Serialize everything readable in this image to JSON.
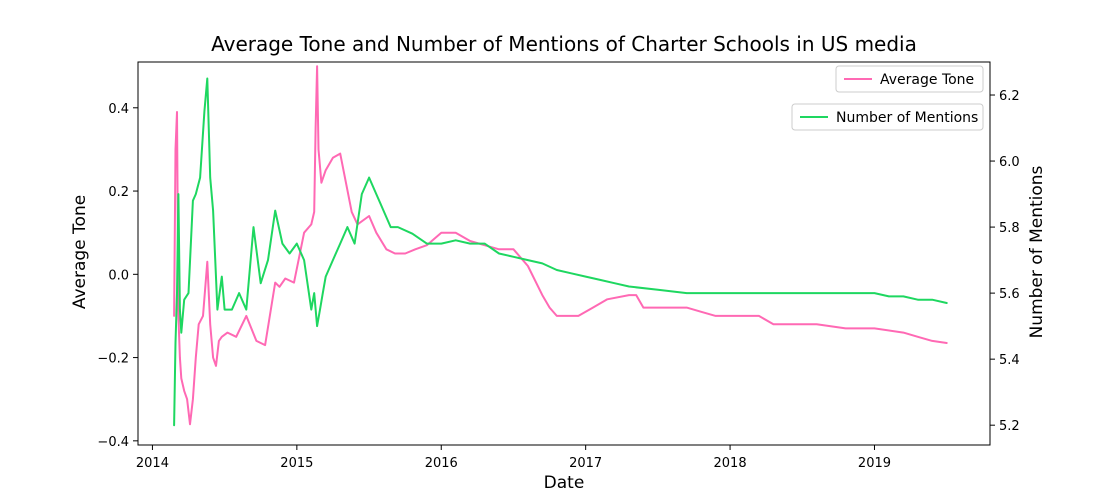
{
  "chart_data": {
    "type": "line",
    "title": "Average Tone and Number of Mentions of Charter Schools in US media",
    "xlabel": "Date",
    "ylabel_left": "Average Tone",
    "ylabel_right": "Number of Mentions",
    "x_ticks": [
      {
        "year": 2014,
        "label": "2014"
      },
      {
        "year": 2015,
        "label": "2015"
      },
      {
        "year": 2016,
        "label": "2016"
      },
      {
        "year": 2017,
        "label": "2017"
      },
      {
        "year": 2018,
        "label": "2018"
      },
      {
        "year": 2019,
        "label": "2019"
      }
    ],
    "y_left_ticks": [
      {
        "value": 0.4,
        "label": "0.4"
      },
      {
        "value": 0.2,
        "label": "0.2"
      },
      {
        "value": 0.0,
        "label": "0.0"
      },
      {
        "value": -0.2,
        "label": "−0.2"
      },
      {
        "value": -0.4,
        "label": "−0.4"
      }
    ],
    "y_right_ticks": [
      {
        "value": 6.2,
        "label": "6.2"
      },
      {
        "value": 6.0,
        "label": "6.0"
      },
      {
        "value": 5.8,
        "label": "5.8"
      },
      {
        "value": 5.6,
        "label": "5.6"
      },
      {
        "value": 5.4,
        "label": "5.4"
      },
      {
        "value": 5.2,
        "label": "5.2"
      }
    ],
    "xlim": [
      2013.9,
      2019.8
    ],
    "ylim_left": [
      -0.41,
      0.51
    ],
    "ylim_right": [
      5.14,
      6.3
    ],
    "grid": false,
    "series": [
      {
        "name": "Average Tone",
        "axis": "left",
        "color": "#ff69b4",
        "legend_position": "top-right",
        "x": [
          2014.15,
          2014.16,
          2014.17,
          2014.18,
          2014.19,
          2014.2,
          2014.22,
          2014.24,
          2014.26,
          2014.28,
          2014.3,
          2014.32,
          2014.35,
          2014.38,
          2014.4,
          2014.42,
          2014.44,
          2014.46,
          2014.48,
          2014.52,
          2014.58,
          2014.65,
          2014.72,
          2014.78,
          2014.85,
          2014.88,
          2014.92,
          2014.98,
          2015.05,
          2015.1,
          2015.12,
          2015.13,
          2015.14,
          2015.15,
          2015.17,
          2015.2,
          2015.25,
          2015.3,
          2015.38,
          2015.42,
          2015.5,
          2015.55,
          2015.62,
          2015.68,
          2015.75,
          2015.82,
          2015.9,
          2016.0,
          2016.1,
          2016.2,
          2016.3,
          2016.4,
          2016.5,
          2016.6,
          2016.7,
          2016.75,
          2016.8,
          2016.85,
          2016.95,
          2017.05,
          2017.15,
          2017.3,
          2017.35,
          2017.4,
          2017.5,
          2017.6,
          2017.7,
          2017.8,
          2017.9,
          2018.0,
          2018.2,
          2018.3,
          2018.4,
          2018.6,
          2018.8,
          2019.0,
          2019.2,
          2019.3,
          2019.4,
          2019.5
        ],
        "y": [
          -0.1,
          0.3,
          0.39,
          -0.1,
          -0.2,
          -0.25,
          -0.28,
          -0.3,
          -0.36,
          -0.3,
          -0.2,
          -0.12,
          -0.1,
          0.03,
          -0.12,
          -0.2,
          -0.22,
          -0.16,
          -0.15,
          -0.14,
          -0.15,
          -0.1,
          -0.16,
          -0.17,
          -0.02,
          -0.03,
          -0.01,
          -0.02,
          0.1,
          0.12,
          0.15,
          0.35,
          0.5,
          0.3,
          0.22,
          0.25,
          0.28,
          0.29,
          0.15,
          0.12,
          0.14,
          0.1,
          0.06,
          0.05,
          0.05,
          0.06,
          0.07,
          0.1,
          0.1,
          0.08,
          0.07,
          0.06,
          0.06,
          0.02,
          -0.05,
          -0.08,
          -0.1,
          -0.1,
          -0.1,
          -0.08,
          -0.06,
          -0.05,
          -0.05,
          -0.08,
          -0.08,
          -0.08,
          -0.08,
          -0.09,
          -0.1,
          -0.1,
          -0.1,
          -0.12,
          -0.12,
          -0.12,
          -0.13,
          -0.13,
          -0.14,
          -0.15,
          -0.16,
          -0.165
        ]
      },
      {
        "name": "Number of Mentions",
        "axis": "right",
        "color": "#1ed760",
        "legend_position": "upper right",
        "x": [
          2014.15,
          2014.16,
          2014.17,
          2014.18,
          2014.19,
          2014.2,
          2014.22,
          2014.25,
          2014.28,
          2014.3,
          2014.33,
          2014.36,
          2014.38,
          2014.4,
          2014.42,
          2014.45,
          2014.48,
          2014.5,
          2014.55,
          2014.6,
          2014.65,
          2014.7,
          2014.75,
          2014.8,
          2014.85,
          2014.9,
          2014.95,
          2015.0,
          2015.05,
          2015.1,
          2015.12,
          2015.14,
          2015.16,
          2015.18,
          2015.2,
          2015.25,
          2015.3,
          2015.35,
          2015.4,
          2015.45,
          2015.5,
          2015.55,
          2015.6,
          2015.65,
          2015.7,
          2015.8,
          2015.9,
          2016.0,
          2016.1,
          2016.2,
          2016.3,
          2016.4,
          2016.5,
          2016.6,
          2016.7,
          2016.8,
          2016.9,
          2017.0,
          2017.1,
          2017.2,
          2017.3,
          2017.5,
          2017.7,
          2017.9,
          2018.0,
          2018.2,
          2018.4,
          2018.6,
          2018.8,
          2019.0,
          2019.1,
          2019.2,
          2019.3,
          2019.4,
          2019.5
        ],
        "y": [
          5.2,
          5.45,
          5.6,
          5.9,
          5.55,
          5.48,
          5.58,
          5.6,
          5.88,
          5.9,
          5.95,
          6.15,
          6.25,
          5.95,
          5.85,
          5.55,
          5.65,
          5.55,
          5.55,
          5.6,
          5.55,
          5.8,
          5.63,
          5.7,
          5.85,
          5.75,
          5.72,
          5.75,
          5.7,
          5.55,
          5.6,
          5.5,
          5.55,
          5.6,
          5.65,
          5.7,
          5.75,
          5.8,
          5.75,
          5.9,
          5.95,
          5.9,
          5.85,
          5.8,
          5.8,
          5.78,
          5.75,
          5.75,
          5.76,
          5.75,
          5.75,
          5.72,
          5.71,
          5.7,
          5.69,
          5.67,
          5.66,
          5.65,
          5.64,
          5.63,
          5.62,
          5.61,
          5.6,
          5.6,
          5.6,
          5.6,
          5.6,
          5.6,
          5.6,
          5.6,
          5.59,
          5.59,
          5.58,
          5.58,
          5.57
        ]
      }
    ]
  }
}
